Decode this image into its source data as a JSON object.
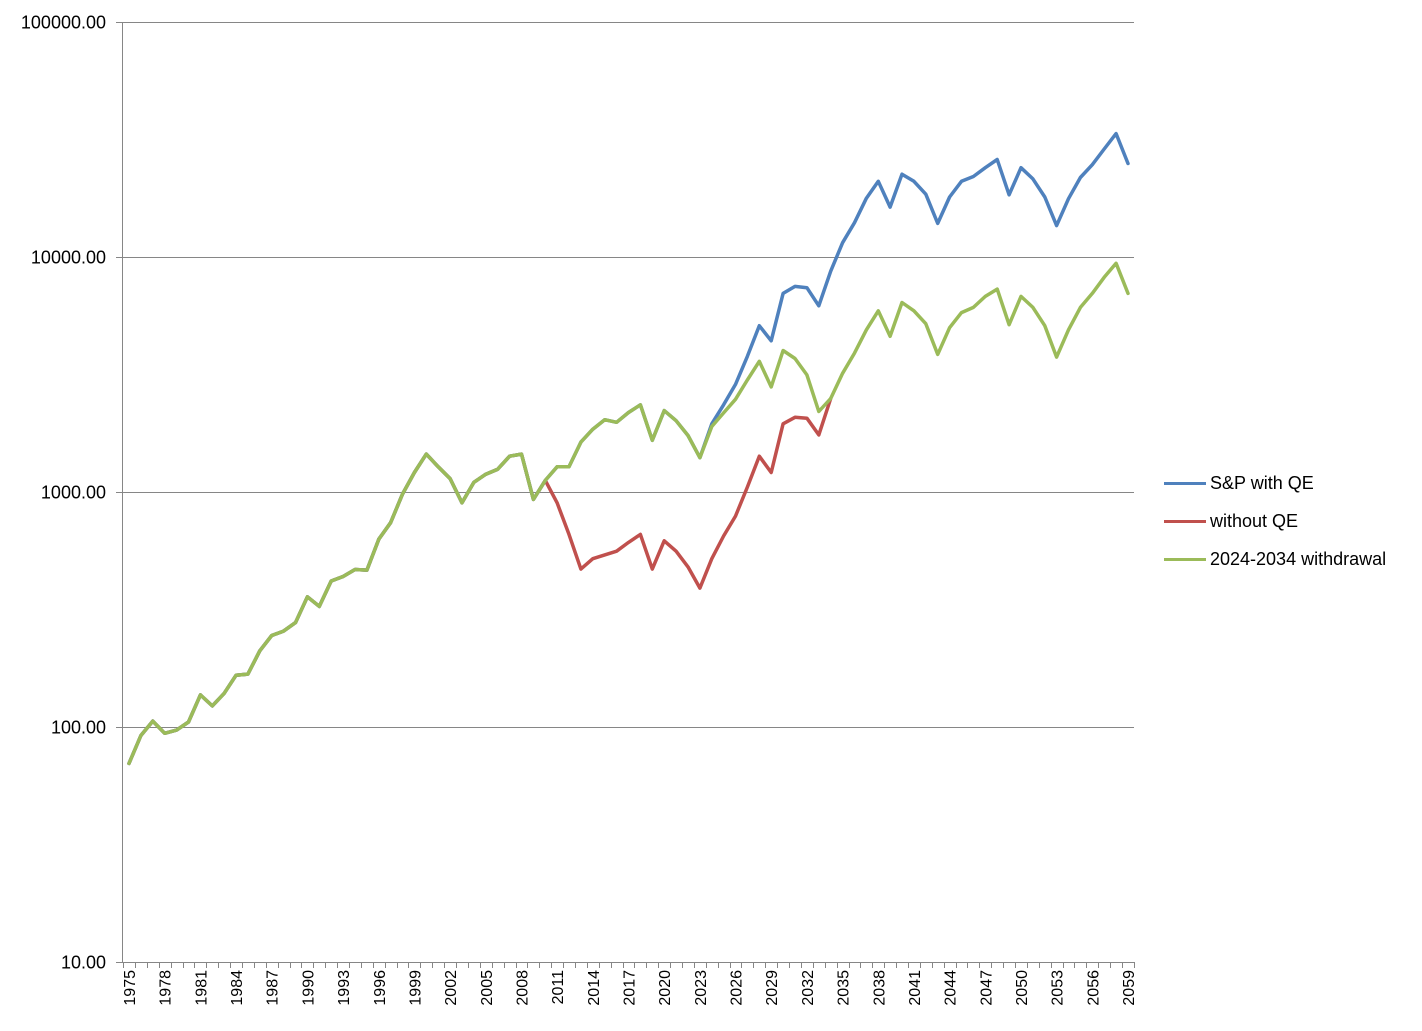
{
  "chart_data": {
    "type": "line",
    "title": "",
    "xlabel": "",
    "ylabel": "",
    "y_scale": "log",
    "ylim": [
      10,
      100000
    ],
    "y_ticks": [
      "10.00",
      "100.00",
      "1000.00",
      "10000.00",
      "100000.00"
    ],
    "x_tick_labels": [
      "1975",
      "1978",
      "1981",
      "1984",
      "1987",
      "1990",
      "1993",
      "1996",
      "1999",
      "2002",
      "2005",
      "2008",
      "2011",
      "2014",
      "2017",
      "2020",
      "2023",
      "2026",
      "2029",
      "2032",
      "2035",
      "2038",
      "2041",
      "2044",
      "2047",
      "2050",
      "2053",
      "2056",
      "2059"
    ],
    "grid": "horizontal major gridlines",
    "legend_position": "right",
    "x": [
      1975,
      1976,
      1977,
      1978,
      1979,
      1980,
      1981,
      1982,
      1983,
      1984,
      1985,
      1986,
      1987,
      1988,
      1989,
      1990,
      1991,
      1992,
      1993,
      1994,
      1995,
      1996,
      1997,
      1998,
      1999,
      2000,
      2001,
      2002,
      2003,
      2004,
      2005,
      2006,
      2007,
      2008,
      2009,
      2010,
      2011,
      2012,
      2013,
      2014,
      2015,
      2016,
      2017,
      2018,
      2019,
      2020,
      2021,
      2022,
      2023,
      2024,
      2025,
      2026,
      2027,
      2028,
      2029,
      2030,
      2031,
      2032,
      2033,
      2034,
      2035,
      2036,
      2037,
      2038,
      2039,
      2040,
      2041,
      2042,
      2043,
      2044,
      2045,
      2046,
      2047,
      2048,
      2049,
      2050,
      2051,
      2052,
      2053,
      2054,
      2055,
      2056,
      2057,
      2058,
      2059
    ],
    "series": [
      {
        "name": "S&P with QE",
        "color": "#4F81BD",
        "values": [
          70,
          92,
          106,
          94,
          97,
          105,
          137,
          123,
          139,
          166,
          168,
          211,
          245,
          256,
          278,
          358,
          326,
          418,
          437,
          468,
          465,
          630,
          740,
          980,
          1210,
          1450,
          1280,
          1140,
          900,
          1100,
          1190,
          1250,
          1420,
          1450,
          930,
          1120,
          1280,
          1280,
          1630,
          1850,
          2030,
          1980,
          2180,
          2350,
          1660,
          2220,
          2010,
          1740,
          1400,
          1950,
          2350,
          2870,
          3780,
          5100,
          4400,
          7000,
          7500,
          7400,
          6200,
          8700,
          11500,
          14000,
          17800,
          21000,
          16300,
          22500,
          21000,
          18500,
          13900,
          18000,
          21000,
          22000,
          24000,
          26000,
          18400,
          24000,
          21500,
          18000,
          13600,
          17700,
          21800,
          24700,
          28800,
          33500,
          25000
        ]
      },
      {
        "name": "without QE",
        "color": "#C0504D",
        "values": [
          70,
          92,
          106,
          94,
          97,
          105,
          137,
          123,
          139,
          166,
          168,
          211,
          245,
          256,
          278,
          358,
          326,
          418,
          437,
          468,
          465,
          630,
          740,
          980,
          1210,
          1450,
          1280,
          1140,
          900,
          1100,
          1190,
          1250,
          1420,
          1450,
          930,
          1120,
          900,
          660,
          470,
          520,
          540,
          560,
          610,
          660,
          470,
          620,
          560,
          480,
          390,
          520,
          650,
          790,
          1050,
          1420,
          1210,
          1950,
          2080,
          2060,
          1750,
          2500,
          null,
          null,
          null,
          null,
          null,
          null,
          null,
          null,
          null,
          null,
          null,
          null,
          null,
          null,
          null,
          null,
          null,
          null,
          null,
          null,
          null,
          null,
          null,
          null,
          null
        ]
      },
      {
        "name": "2024-2034 withdrawal",
        "color": "#9BBB59",
        "values": [
          70,
          92,
          106,
          94,
          97,
          105,
          137,
          123,
          139,
          166,
          168,
          211,
          245,
          256,
          278,
          358,
          326,
          418,
          437,
          468,
          465,
          630,
          740,
          980,
          1210,
          1450,
          1280,
          1140,
          900,
          1100,
          1190,
          1250,
          1420,
          1450,
          930,
          1120,
          1280,
          1280,
          1630,
          1850,
          2030,
          1980,
          2180,
          2350,
          1660,
          2220,
          2010,
          1740,
          1400,
          1900,
          2170,
          2480,
          3000,
          3600,
          2800,
          4000,
          3700,
          3150,
          2200,
          2500,
          3200,
          3900,
          4900,
          5900,
          4600,
          6400,
          5900,
          5200,
          3850,
          5000,
          5800,
          6100,
          6800,
          7300,
          5150,
          6800,
          6100,
          5100,
          3750,
          4900,
          6100,
          7000,
          8200,
          9400,
          7000
        ]
      }
    ]
  }
}
